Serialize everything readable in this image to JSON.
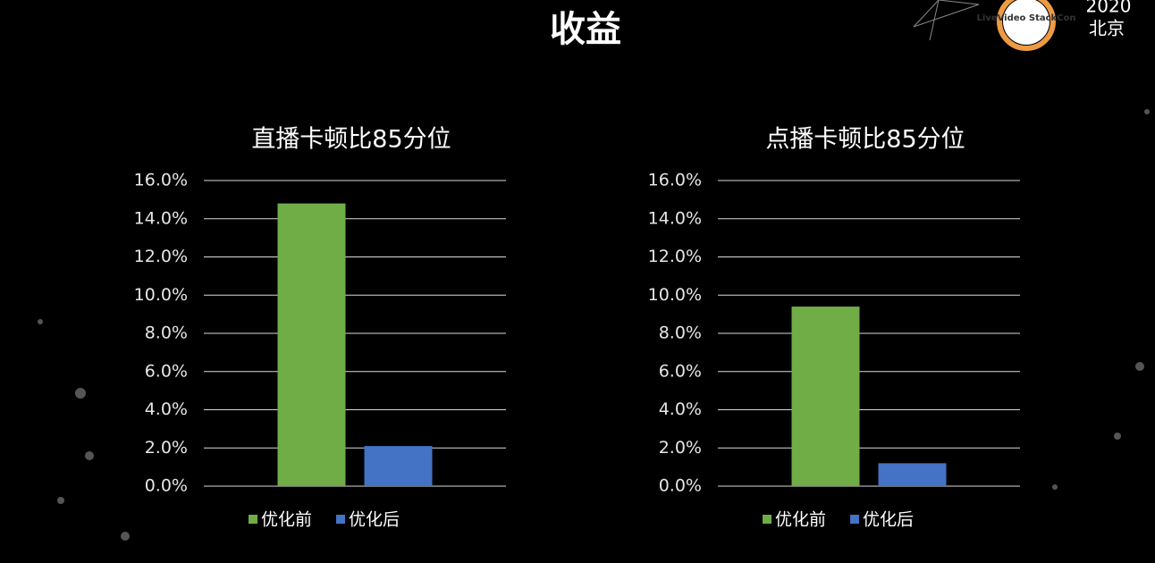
{
  "header": {
    "title": "收益",
    "logo": "LiveVideo StackCon",
    "year": "2020",
    "city": "北京"
  },
  "chart_data": [
    {
      "type": "bar",
      "title": "直播卡顿比85分位",
      "categories": [
        null
      ],
      "series": [
        {
          "name": "优化前",
          "color": "#70ad47",
          "values": [
            14.8
          ]
        },
        {
          "name": "优化后",
          "color": "#4472c4",
          "values": [
            2.1
          ]
        }
      ],
      "ylim": [
        0,
        16
      ],
      "yticks": [
        {
          "value": 0,
          "label": "0.0%"
        },
        {
          "value": 2,
          "label": "2.0%"
        },
        {
          "value": 4,
          "label": "4.0%"
        },
        {
          "value": 6,
          "label": "6.0%"
        },
        {
          "value": 8,
          "label": "8.0%"
        },
        {
          "value": 10,
          "label": "10.0%"
        },
        {
          "value": 12,
          "label": "12.0%"
        },
        {
          "value": 14,
          "label": "14.0%"
        },
        {
          "value": 16,
          "label": "16.0%"
        }
      ],
      "grid": true,
      "legend": "bottom"
    },
    {
      "type": "bar",
      "title": "点播卡顿比85分位",
      "categories": [
        null
      ],
      "series": [
        {
          "name": "优化前",
          "color": "#70ad47",
          "values": [
            9.4
          ]
        },
        {
          "name": "优化后",
          "color": "#4472c4",
          "values": [
            1.2
          ]
        }
      ],
      "ylim": [
        0,
        16
      ],
      "yticks": [
        {
          "value": 0,
          "label": "0.0%"
        },
        {
          "value": 2,
          "label": "2.0%"
        },
        {
          "value": 4,
          "label": "4.0%"
        },
        {
          "value": 6,
          "label": "6.0%"
        },
        {
          "value": 8,
          "label": "8.0%"
        },
        {
          "value": 10,
          "label": "10.0%"
        },
        {
          "value": 12,
          "label": "12.0%"
        },
        {
          "value": 14,
          "label": "14.0%"
        },
        {
          "value": 16,
          "label": "16.0%"
        }
      ],
      "grid": true,
      "legend": "bottom"
    }
  ]
}
